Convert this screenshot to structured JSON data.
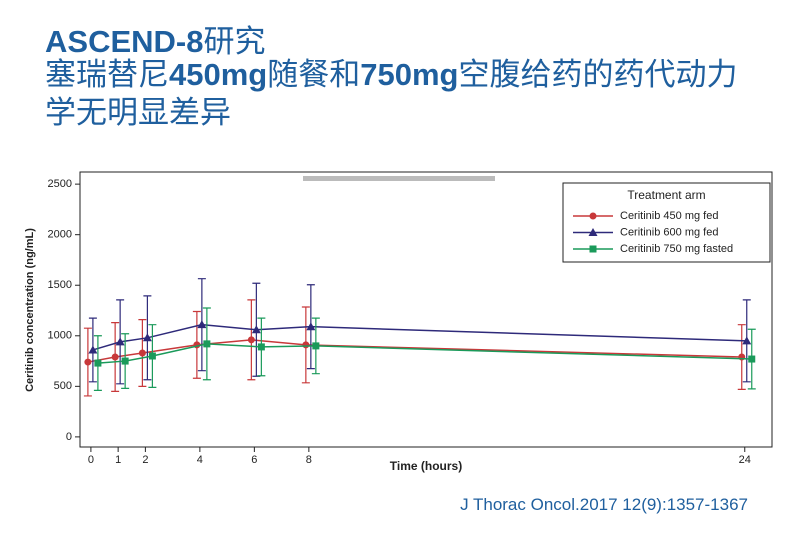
{
  "title_parts": [
    "ASCEND-8",
    "研究"
  ],
  "subtitle_parts": [
    "塞瑞替尼",
    "450mg",
    "随餐和",
    "750mg",
    "空腹给药的药代动力学无明显差异"
  ],
  "citation": "J Thorac Oncol.2017 12(9):1357-1367",
  "chart_data": {
    "type": "line",
    "x_label": "Time (hours)",
    "y_label": "Ceritinib concentration (ng/mL)",
    "x": [
      0,
      1,
      2,
      4,
      6,
      8,
      24
    ],
    "xlim": [
      -0.4,
      25
    ],
    "xticks": [
      0,
      1,
      2,
      4,
      6,
      8,
      24
    ],
    "ylim": [
      -100,
      2620
    ],
    "yticks": [
      0,
      500,
      1000,
      1500,
      2000,
      2500
    ],
    "legend_title": "Treatment arm",
    "legend": "upper right",
    "series": [
      {
        "name": "Ceritinib 450 mg fed",
        "color": "#c8383a",
        "marker": "circle",
        "values": [
          740,
          790,
          830,
          910,
          960,
          910,
          790
        ],
        "errors": [
          335,
          340,
          330,
          330,
          395,
          375,
          320
        ]
      },
      {
        "name": "Ceritinib 600 mg fed",
        "color": "#2e2a7a",
        "marker": "triangle",
        "values": [
          860,
          940,
          980,
          1110,
          1060,
          1090,
          950
        ],
        "errors": [
          315,
          415,
          415,
          455,
          460,
          415,
          405
        ]
      },
      {
        "name": "Ceritinib 750 mg fasted",
        "color": "#1a9a5a",
        "marker": "square",
        "values": [
          730,
          750,
          800,
          920,
          890,
          900,
          770
        ],
        "errors": [
          270,
          270,
          310,
          355,
          285,
          275,
          295
        ]
      }
    ]
  }
}
